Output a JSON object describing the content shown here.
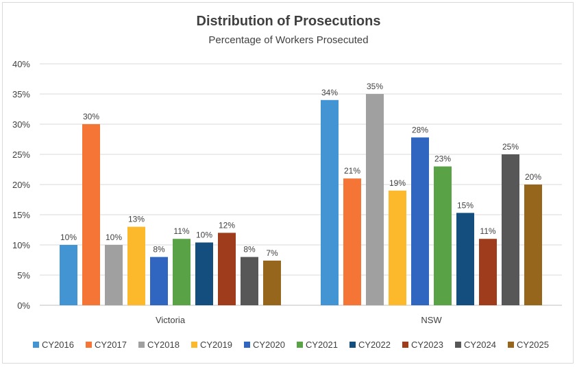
{
  "chart_data": {
    "type": "bar",
    "title": "Distribution of Prosecutions",
    "subtitle": "Percentage of Workers Prosecuted",
    "xlabel": "",
    "ylabel": "",
    "ylim": [
      0,
      40
    ],
    "yticks": [
      "0%",
      "5%",
      "10%",
      "15%",
      "20%",
      "25%",
      "30%",
      "35%",
      "40%"
    ],
    "grid": true,
    "legend_position": "bottom",
    "categories": [
      "Victoria",
      "NSW"
    ],
    "series": [
      {
        "name": "CY2016",
        "color": "#4394d3",
        "values": [
          10,
          34
        ],
        "labels": [
          "10%",
          "34%"
        ]
      },
      {
        "name": "CY2017",
        "color": "#f47536",
        "values": [
          30,
          21
        ],
        "labels": [
          "30%",
          "21%"
        ]
      },
      {
        "name": "CY2018",
        "color": "#a0a0a0",
        "values": [
          10,
          35
        ],
        "labels": [
          "10%",
          "35%"
        ]
      },
      {
        "name": "CY2019",
        "color": "#fcb92c",
        "values": [
          13,
          19
        ],
        "labels": [
          "13%",
          "19%"
        ]
      },
      {
        "name": "CY2020",
        "color": "#3166c0",
        "values": [
          8,
          27.8
        ],
        "labels": [
          "8%",
          "28%"
        ]
      },
      {
        "name": "CY2021",
        "color": "#5aa246",
        "values": [
          11,
          23
        ],
        "labels": [
          "11%",
          "23%"
        ]
      },
      {
        "name": "CY2022",
        "color": "#134e7f",
        "values": [
          10.4,
          15.3
        ],
        "labels": [
          "10%",
          "15%"
        ]
      },
      {
        "name": "CY2023",
        "color": "#9e3c1b",
        "values": [
          12,
          11
        ],
        "labels": [
          "12%",
          "11%"
        ]
      },
      {
        "name": "CY2024",
        "color": "#575757",
        "values": [
          8,
          25
        ],
        "labels": [
          "8%",
          "25%"
        ]
      },
      {
        "name": "CY2025",
        "color": "#96661c",
        "values": [
          7.4,
          20
        ],
        "labels": [
          "7%",
          "20%"
        ]
      }
    ]
  }
}
